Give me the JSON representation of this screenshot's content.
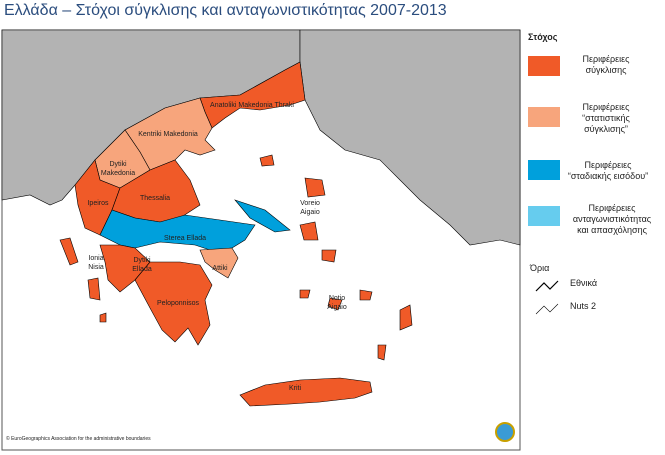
{
  "header": {
    "title": "Ελλάδα – Στόχοι σύγκλισης και ανταγωνιστικότητας 2007-2013"
  },
  "map": {
    "regions": [
      {
        "label": [
          "Anatoliki Makedonia Thraki"
        ]
      },
      {
        "label": [
          "Kentriki Makedonia"
        ]
      },
      {
        "label": [
          "Dytiki",
          "Makedonia"
        ]
      },
      {
        "label": [
          "Ipeiros"
        ]
      },
      {
        "label": [
          "Thessalia"
        ]
      },
      {
        "label": [
          "Sterea Ellada"
        ]
      },
      {
        "label": [
          "Ionia",
          "Nisia"
        ]
      },
      {
        "label": [
          "Dytiki",
          "Ellada"
        ]
      },
      {
        "label": [
          "Attiki"
        ]
      },
      {
        "label": [
          "Peloponnisos"
        ]
      },
      {
        "label": [
          "Voreio",
          "Aigaio"
        ]
      },
      {
        "label": [
          "Notio",
          "Aigaio"
        ]
      },
      {
        "label": [
          "Kriti"
        ]
      }
    ],
    "copyright": "© EuroGeographics Association for the administrative boundaries"
  },
  "legend": {
    "title": "Στόχος",
    "items": [
      {
        "label": [
          "Περιφέρειες",
          "σύγκλισης"
        ]
      },
      {
        "label": [
          "Περιφέρειες",
          "“στατιστικής",
          "σύγκλισης”"
        ]
      },
      {
        "label": [
          "Περιφέρειες",
          "“σταδιακής εισόδου”"
        ]
      },
      {
        "label": [
          "Περιφέρειες",
          "ανταγωνιστικότητας",
          "και απασχόλησης"
        ]
      }
    ],
    "boundaries_title": "Όρια",
    "boundaries": [
      "Εθνικά",
      "Nuts 2"
    ]
  }
}
